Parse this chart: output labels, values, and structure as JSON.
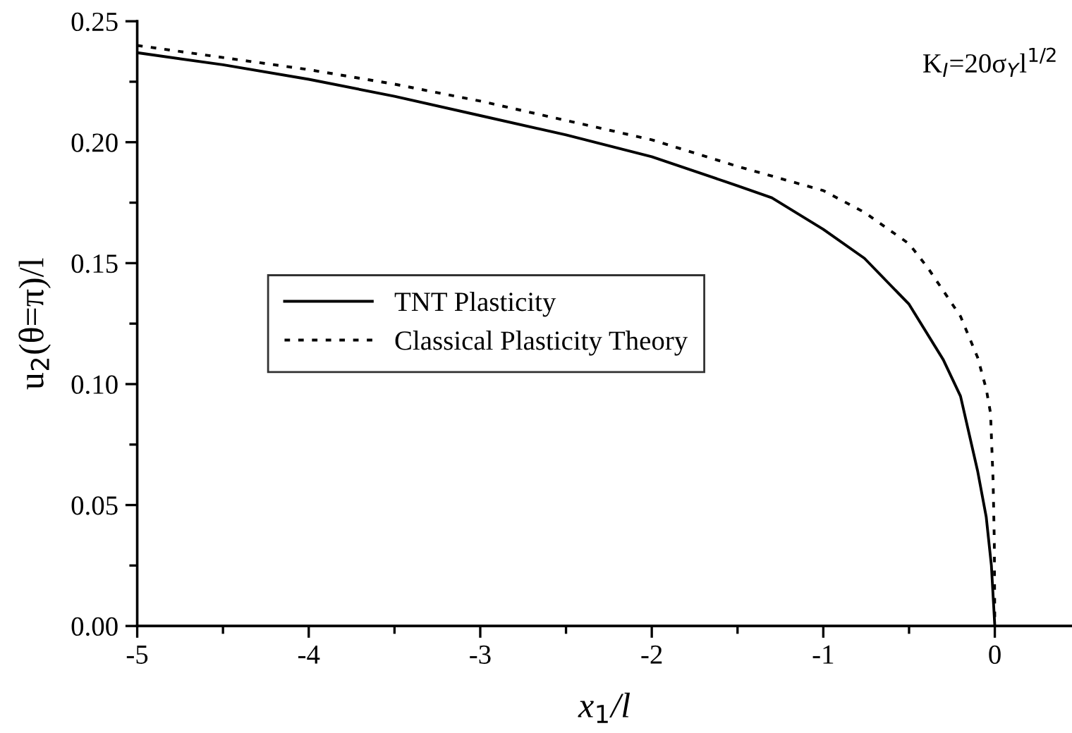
{
  "chart_data": {
    "type": "line",
    "xlabel": "x$_{1}$/l",
    "ylabel": "u$_{2}$(θ=π)/l",
    "annotations": [
      "K$_{I}$=20σ$_{Y}$l$^{1/2}$"
    ],
    "xlim": [
      -5,
      0.45
    ],
    "ylim": [
      0,
      0.25
    ],
    "xticks": [
      -5,
      {
        "value": -4.5,
        "label": null
      },
      -4,
      {
        "value": -3.5,
        "label": null
      },
      -3,
      {
        "value": -2.5,
        "label": null
      },
      -2,
      {
        "value": -1.5,
        "label": null
      },
      -1,
      {
        "value": -0.5,
        "label": null
      },
      0
    ],
    "yticks": [
      {
        "value": 0,
        "label": "0.00"
      },
      {
        "value": 0.025,
        "label": null
      },
      {
        "value": 0.05,
        "label": "0.05"
      },
      {
        "value": 0.075,
        "label": null
      },
      {
        "value": 0.1,
        "label": "0.10"
      },
      {
        "value": 0.125,
        "label": null
      },
      {
        "value": 0.15,
        "label": "0.15"
      },
      {
        "value": 0.175,
        "label": null
      },
      {
        "value": 0.2,
        "label": "0.20"
      },
      {
        "value": 0.225,
        "label": null
      },
      {
        "value": 0.25,
        "label": "0.25"
      }
    ],
    "grid": false,
    "legend": "left",
    "marker": "none",
    "series": [
      {
        "name": "TNT Plasticity",
        "color": "#000000",
        "line_style": "solid",
        "x": [
          -5,
          -4.5,
          -4,
          -3.5,
          -3,
          -2.5,
          -2,
          -1.5,
          -1.3,
          -1,
          -0.76,
          -0.5,
          -0.3,
          -0.2,
          -0.1,
          -0.05,
          -0.02,
          0
        ],
        "values": [
          0.237,
          0.232,
          0.226,
          0.219,
          0.211,
          0.203,
          0.194,
          0.182,
          0.177,
          0.164,
          0.152,
          0.133,
          0.11,
          0.095,
          0.064,
          0.045,
          0.025,
          0
        ]
      },
      {
        "name": "Classical Plasticity Theory",
        "color": "#000000",
        "line_style": "dotted",
        "x": [
          -5,
          -4.5,
          -4,
          -3.5,
          -3,
          -2.5,
          -2,
          -1.5,
          -1,
          -0.76,
          -0.5,
          -0.39,
          -0.2,
          -0.1,
          -0.05,
          -0.025,
          -0.01,
          -0.003,
          0
        ],
        "values": [
          0.24,
          0.235,
          0.23,
          0.224,
          0.217,
          0.209,
          0.201,
          0.19,
          0.18,
          0.171,
          0.158,
          0.148,
          0.128,
          0.111,
          0.098,
          0.088,
          0.06,
          0.035,
          0
        ]
      }
    ]
  }
}
